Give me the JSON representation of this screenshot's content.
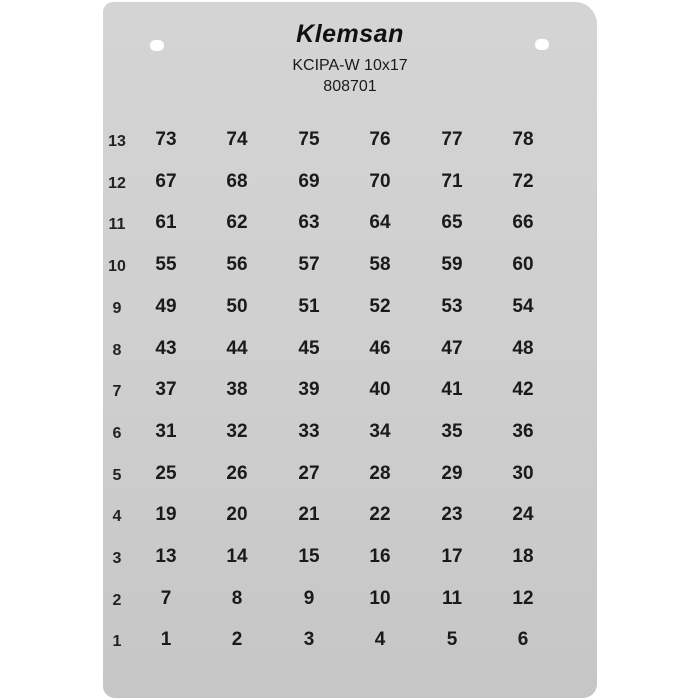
{
  "plate": {
    "brand": "Klemsan",
    "model": "KCIPA-W 10x17",
    "code": "808701",
    "color": "#d0d0d0",
    "rows": [
      {
        "label": "13",
        "cells": [
          "73",
          "74",
          "75",
          "76",
          "77",
          "78"
        ]
      },
      {
        "label": "12",
        "cells": [
          "67",
          "68",
          "69",
          "70",
          "71",
          "72"
        ]
      },
      {
        "label": "11",
        "cells": [
          "61",
          "62",
          "63",
          "64",
          "65",
          "66"
        ]
      },
      {
        "label": "10",
        "cells": [
          "55",
          "56",
          "57",
          "58",
          "59",
          "60"
        ]
      },
      {
        "label": "9",
        "cells": [
          "49",
          "50",
          "51",
          "52",
          "53",
          "54"
        ]
      },
      {
        "label": "8",
        "cells": [
          "43",
          "44",
          "45",
          "46",
          "47",
          "48"
        ]
      },
      {
        "label": "7",
        "cells": [
          "37",
          "38",
          "39",
          "40",
          "41",
          "42"
        ]
      },
      {
        "label": "6",
        "cells": [
          "31",
          "32",
          "33",
          "34",
          "35",
          "36"
        ]
      },
      {
        "label": "5",
        "cells": [
          "25",
          "26",
          "27",
          "28",
          "29",
          "30"
        ]
      },
      {
        "label": "4",
        "cells": [
          "19",
          "20",
          "21",
          "22",
          "23",
          "24"
        ]
      },
      {
        "label": "3",
        "cells": [
          "13",
          "14",
          "15",
          "16",
          "17",
          "18"
        ]
      },
      {
        "label": "2",
        "cells": [
          "7",
          "8",
          "9",
          "10",
          "11",
          "12"
        ]
      },
      {
        "label": "1",
        "cells": [
          "1",
          "2",
          "3",
          "4",
          "5",
          "6"
        ]
      }
    ]
  }
}
